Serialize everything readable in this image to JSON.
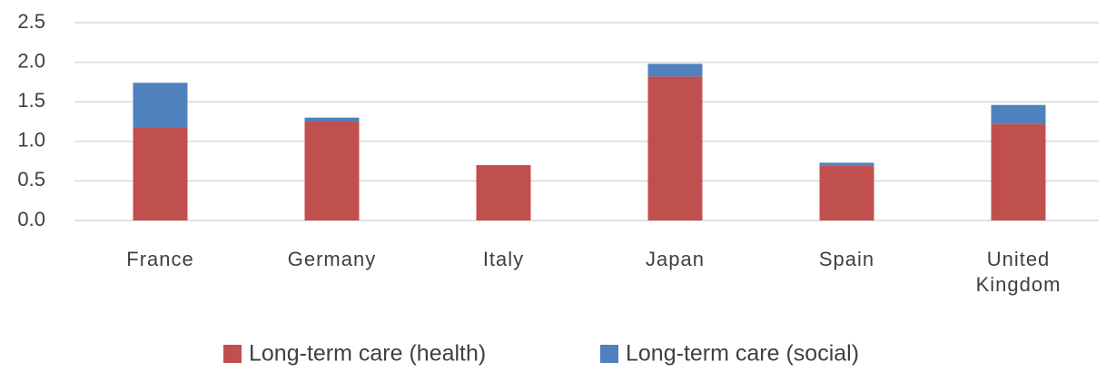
{
  "chart_data": {
    "type": "bar",
    "stacked": true,
    "categories": [
      "France",
      "Germany",
      "Italy",
      "Japan",
      "Spain",
      "United Kingdom"
    ],
    "series": [
      {
        "name": "Long-term care (health)",
        "color": "#c0504d",
        "values": [
          1.18,
          1.25,
          0.7,
          1.82,
          0.69,
          1.22
        ]
      },
      {
        "name": "Long-term care (social)",
        "color": "#4f81bd",
        "values": [
          0.56,
          0.05,
          0,
          0.16,
          0.04,
          0.24
        ]
      }
    ],
    "ylim": [
      0,
      2.5
    ],
    "yticks": [
      {
        "value": 0,
        "label": "0.0"
      },
      0.5,
      {
        "value": 1,
        "label": "1.0"
      },
      1.5,
      {
        "value": 2,
        "label": "2.0"
      },
      2.5
    ],
    "grid": true,
    "legend": "bottom"
  }
}
